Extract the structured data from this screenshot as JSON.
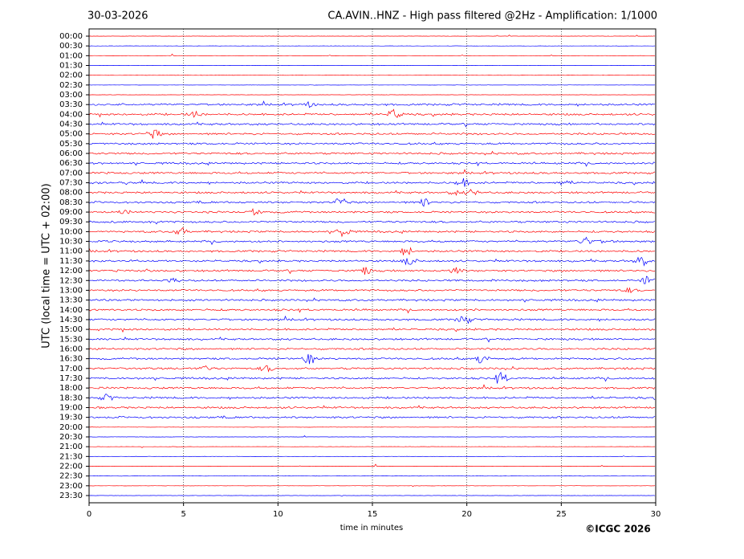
{
  "chart_data": {
    "type": "helicorder",
    "date": "30-03-2026",
    "title": "CA.AVIN..HNZ - High pass filtered @2Hz - Amplification: 1/1000",
    "ylabel": "UTC (local time = UTC + 02:00)",
    "xlabel": "time in minutes",
    "copyright": "©ICGC 2026",
    "categories": [
      "00:00",
      "00:30",
      "01:00",
      "01:30",
      "02:00",
      "02:30",
      "03:00",
      "03:30",
      "04:00",
      "04:30",
      "05:00",
      "05:30",
      "06:00",
      "06:30",
      "07:00",
      "07:30",
      "08:00",
      "08:30",
      "09:00",
      "09:30",
      "10:00",
      "10:30",
      "11:00",
      "11:30",
      "12:00",
      "12:30",
      "13:00",
      "13:30",
      "14:00",
      "14:30",
      "15:00",
      "15:30",
      "16:00",
      "16:30",
      "17:00",
      "17:30",
      "18:00",
      "18:30",
      "19:00",
      "19:30",
      "20:00",
      "20:30",
      "21:00",
      "21:30",
      "22:00",
      "22:30",
      "23:00",
      "23:30"
    ],
    "colors": [
      "#ff0000",
      "#0000ff"
    ],
    "xlim": [
      0,
      30
    ],
    "xticks": [
      0,
      5,
      10,
      15,
      20,
      25,
      30
    ],
    "grid": true
  }
}
